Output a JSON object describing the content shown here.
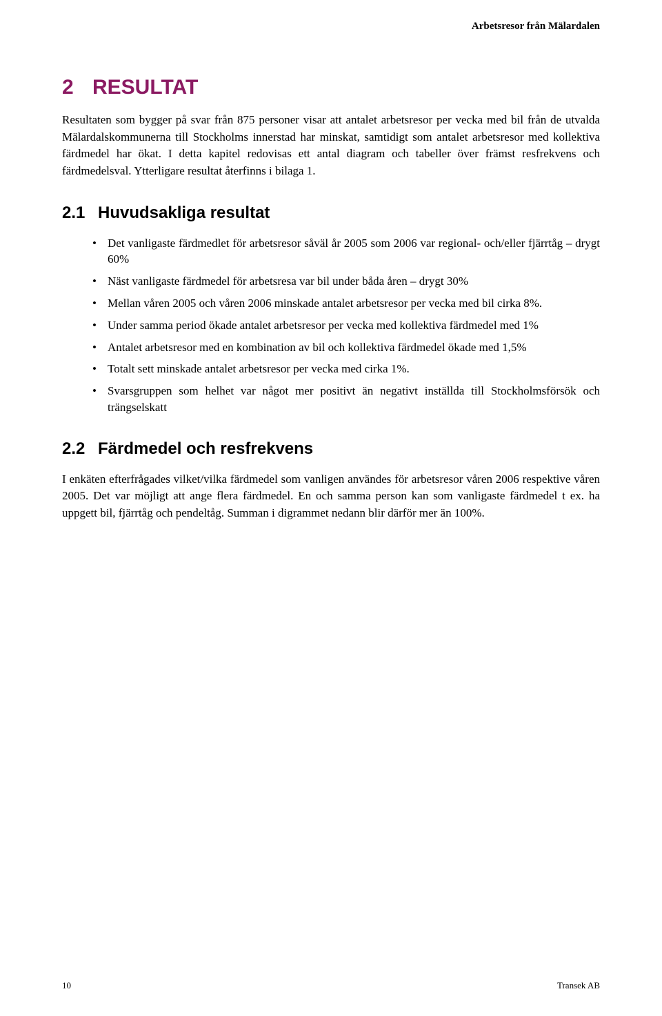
{
  "header": {
    "running_title": "Arbetsresor från Mälardalen"
  },
  "colors": {
    "accent": "#8b1a62",
    "text": "#000000",
    "background": "#ffffff"
  },
  "typography": {
    "body_font": "Times New Roman",
    "heading_font": "Arial",
    "h1_size_pt": 22,
    "h2_size_pt": 18,
    "body_size_pt": 12
  },
  "section2": {
    "number": "2",
    "title": "RESULTAT",
    "intro": "Resultaten som bygger på svar från 875 personer visar att antalet arbetsresor per vecka med bil från de utvalda Mälardalskommunerna till Stockholms innerstad har minskat, samtidigt som antalet arbetsresor med kollektiva färdmedel har ökat. I detta kapitel redovisas ett antal diagram och tabeller över främst resfrekvens och färdmedelsval. Ytterligare resultat återfinns i bilaga 1."
  },
  "section21": {
    "number": "2.1",
    "title": "Huvudsakliga resultat",
    "bullets": [
      "Det vanligaste färdmedlet för arbetsresor såväl år 2005 som 2006 var regional- och/eller fjärrtåg – drygt 60%",
      "Näst vanligaste färdmedel för arbetsresa var bil under båda åren – drygt 30%",
      "Mellan våren 2005 och våren 2006 minskade antalet arbetsresor per vecka med  bil cirka 8%.",
      "Under samma period ökade antalet arbetsresor per vecka med kollektiva färdmedel med 1%",
      "Antalet arbetsresor med en kombination av bil och kollektiva färdmedel ökade med 1,5%",
      "Totalt sett minskade antalet arbetsresor per vecka med cirka 1%.",
      "Svarsgruppen som helhet var något mer positivt än negativt inställda till Stockholmsförsök och trängselskatt"
    ]
  },
  "section22": {
    "number": "2.2",
    "title": "Färdmedel och resfrekvens",
    "para": "I enkäten efterfrågades vilket/vilka färdmedel som vanligen användes för arbetsresor våren 2006 respektive våren 2005.  Det var möjligt att ange flera färdmedel. En och samma person kan som vanligaste färdmedel t ex. ha uppgett bil, fjärrtåg och pendeltåg. Summan i digrammet nedann blir därför mer än 100%."
  },
  "footer": {
    "page_number": "10",
    "publisher": "Transek AB"
  }
}
